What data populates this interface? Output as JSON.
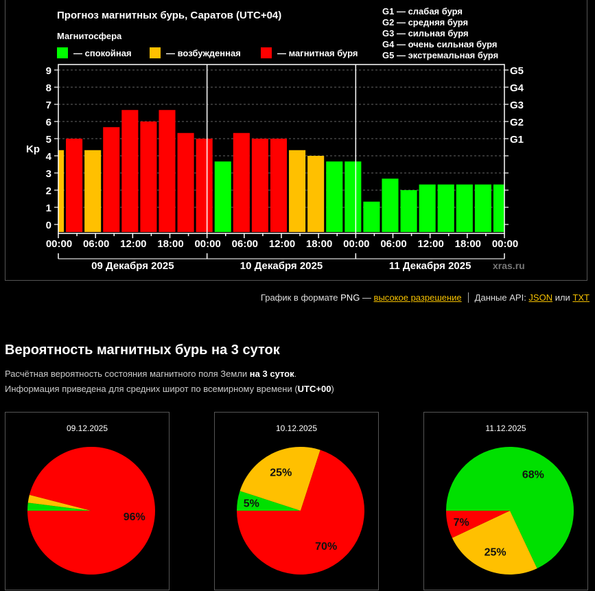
{
  "forecast_chart": {
    "title": "Прогноз магнитных бурь, Саратов (UTC+04)",
    "legend_title": "Магнитосфера",
    "legend": [
      {
        "label": "— спокойная",
        "color": "#00ff00"
      },
      {
        "label": "— возбужденная",
        "color": "#ffc000"
      },
      {
        "label": "— магнитная буря",
        "color": "#ff0000"
      }
    ],
    "g_scale": [
      "G1 — слабая буря",
      "G2 — средняя буря",
      "G3 — сильная буря",
      "G4 — очень сильная буря",
      "G5 — экстремальная буря"
    ],
    "watermark": "xras.ru"
  },
  "chart_data": [
    {
      "type": "bar",
      "title": "Прогноз магнитных бурь, Саратов (UTC+04)",
      "ylabel": "Kp",
      "xlabel": "",
      "ylim": [
        0,
        9
      ],
      "yticks": [
        "0",
        "1",
        "2",
        "3",
        "4",
        "5",
        "6",
        "7",
        "8",
        "9"
      ],
      "right_ticks": [
        {
          "value": 5,
          "label": "G1"
        },
        {
          "value": 6,
          "label": "G2"
        },
        {
          "value": 7,
          "label": "G3"
        },
        {
          "value": 8,
          "label": "G4"
        },
        {
          "value": 9,
          "label": "G5"
        }
      ],
      "xtick_labels": [
        "00:00",
        "06:00",
        "12:00",
        "18:00",
        "00:00",
        "06:00",
        "12:00",
        "18:00",
        "00:00",
        "06:00",
        "12:00",
        "18:00",
        "00:00"
      ],
      "day_labels": [
        "09 Декабря 2025",
        "10 Декабря 2025",
        "11 Декабря 2025"
      ],
      "grid": true,
      "interval_hours": 3,
      "x": [
        "09.12 00:00",
        "09.12 03:00",
        "09.12 06:00",
        "09.12 09:00",
        "09.12 12:00",
        "09.12 15:00",
        "09.12 18:00",
        "09.12 21:00",
        "10.12 00:00",
        "10.12 03:00",
        "10.12 06:00",
        "10.12 09:00",
        "10.12 12:00",
        "10.12 15:00",
        "10.12 18:00",
        "10.12 21:00",
        "11.12 00:00",
        "11.12 03:00",
        "11.12 06:00",
        "11.12 09:00",
        "11.12 12:00",
        "11.12 15:00",
        "11.12 18:00",
        "11.12 21:00",
        "12.12 00:00"
      ],
      "values": [
        4.33,
        5.0,
        4.33,
        5.67,
        6.67,
        6.0,
        6.67,
        5.33,
        5.0,
        3.67,
        5.33,
        5.0,
        5.0,
        4.33,
        4.0,
        3.67,
        3.67,
        1.33,
        2.67,
        2.0,
        2.33,
        2.33,
        2.33,
        2.33,
        2.33
      ],
      "status": [
        "excited",
        "storm",
        "excited",
        "storm",
        "storm",
        "storm",
        "storm",
        "storm",
        "storm",
        "quiet",
        "storm",
        "storm",
        "storm",
        "excited",
        "excited",
        "quiet",
        "quiet",
        "quiet",
        "quiet",
        "quiet",
        "quiet",
        "quiet",
        "quiet",
        "quiet",
        "quiet"
      ],
      "status_colors": {
        "quiet": "#00ff00",
        "excited": "#ffc000",
        "storm": "#ff0000"
      }
    },
    {
      "type": "pie",
      "title": "09.12.2025",
      "labels": [
        "спокойная",
        "возбужденная",
        "магнитная буря"
      ],
      "values": [
        2,
        2,
        96
      ],
      "value_labels": [
        "",
        "",
        "96%"
      ],
      "colors": [
        "#00e000",
        "#ffc000",
        "#ff0000"
      ]
    },
    {
      "type": "pie",
      "title": "10.12.2025",
      "labels": [
        "спокойная",
        "возбужденная",
        "магнитная буря"
      ],
      "values": [
        5,
        25,
        70
      ],
      "value_labels": [
        "5%",
        "25%",
        "70%"
      ],
      "colors": [
        "#00e000",
        "#ffc000",
        "#ff0000"
      ]
    },
    {
      "type": "pie",
      "title": "11.12.2025",
      "labels": [
        "спокойная",
        "возбужденная",
        "магнитная буря"
      ],
      "values": [
        68,
        25,
        7
      ],
      "value_labels": [
        "68%",
        "25%",
        "7%"
      ],
      "colors": [
        "#00e000",
        "#ffc000",
        "#ff0000"
      ]
    }
  ],
  "links": {
    "png_prefix": "График в формате ",
    "png_word": "PNG",
    "png_dash": " — ",
    "hires_link": "высокое разрешение",
    "api_prefix": "Данные API: ",
    "json_link": "JSON",
    "or": " или ",
    "txt_link": "TXT"
  },
  "probability": {
    "heading": "Вероятность магнитных бурь на 3 суток",
    "line1_text": "Расчётная вероятность состояния магнитного поля Земли ",
    "line1_bold": "на 3 суток",
    "line1_end": ".",
    "line2_text": "Информация приведена для средних широт по всемирному времени (",
    "line2_bold": "UTC+00",
    "line2_end": ")"
  }
}
